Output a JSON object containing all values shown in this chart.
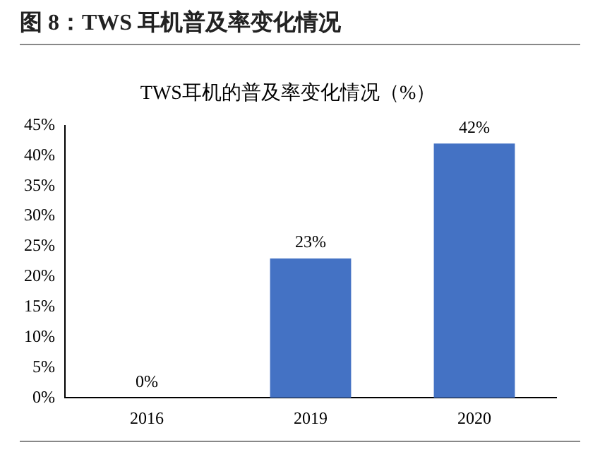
{
  "chart_data": {
    "type": "bar",
    "title": "图 8：TWS 耳机普及率变化情况",
    "subtitle": "TWS耳机的普及率变化情况（%）",
    "categories": [
      "2016",
      "2019",
      "2020"
    ],
    "values": [
      0,
      23,
      42
    ],
    "value_labels": [
      "0%",
      "23%",
      "42%"
    ],
    "color": "#4472c4",
    "ylim": [
      0,
      45
    ],
    "yticks": [
      {
        "value": 0,
        "label": "0%"
      },
      {
        "value": 5,
        "label": "5%"
      },
      {
        "value": 10,
        "label": "10%"
      },
      {
        "value": 15,
        "label": "15%"
      },
      {
        "value": 20,
        "label": "20%"
      },
      {
        "value": 25,
        "label": "25%"
      },
      {
        "value": 30,
        "label": "30%"
      },
      {
        "value": 35,
        "label": "35%"
      },
      {
        "value": 40,
        "label": "40%"
      },
      {
        "value": 45,
        "label": "45%"
      }
    ],
    "grid": false,
    "legend": false
  }
}
